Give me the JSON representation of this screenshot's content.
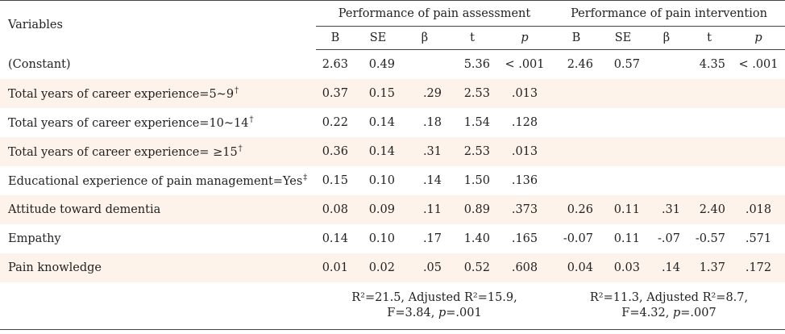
{
  "header": {
    "variables_label": "Variables",
    "group_assessment": "Performance of pain assessment",
    "group_intervention": "Performance of pain intervention",
    "cols_assessment": [
      "B",
      "SE",
      "β",
      "t",
      "p"
    ],
    "cols_intervention": [
      "B",
      "SE",
      "β",
      "t",
      "p"
    ]
  },
  "rows": [
    {
      "label": "(Constant)",
      "mark": "",
      "a": [
        "2.63",
        "0.49",
        "",
        "5.36",
        "< .001"
      ],
      "i": [
        "2.46",
        "0.57",
        "",
        "4.35",
        "< .001"
      ]
    },
    {
      "label": "Total years of career experience=5~9",
      "mark": "†",
      "a": [
        "0.37",
        "0.15",
        ".29",
        "2.53",
        ".013"
      ],
      "i": [
        "",
        "",
        "",
        "",
        ""
      ]
    },
    {
      "label": "Total years of career experience=10~14",
      "mark": "†",
      "a": [
        "0.22",
        "0.14",
        ".18",
        "1.54",
        ".128"
      ],
      "i": [
        "",
        "",
        "",
        "",
        ""
      ]
    },
    {
      "label": "Total years of career experience= ≥15",
      "mark": "†",
      "a": [
        "0.36",
        "0.14",
        ".31",
        "2.53",
        ".013"
      ],
      "i": [
        "",
        "",
        "",
        "",
        ""
      ]
    },
    {
      "label": "Educational experience of pain management=Yes",
      "mark": "‡",
      "a": [
        "0.15",
        "0.10",
        ".14",
        "1.50",
        ".136"
      ],
      "i": [
        "",
        "",
        "",
        "",
        ""
      ]
    },
    {
      "label": "Attitude toward dementia",
      "mark": "",
      "a": [
        "0.08",
        "0.09",
        ".11",
        "0.89",
        ".373"
      ],
      "i": [
        "0.26",
        "0.11",
        ".31",
        "2.40",
        ".018"
      ]
    },
    {
      "label": "Empathy",
      "mark": "",
      "a": [
        "0.14",
        "0.10",
        ".17",
        "1.40",
        ".165"
      ],
      "i": [
        "-0.07",
        "0.11",
        "-.07",
        "-0.57",
        ".571"
      ]
    },
    {
      "label": "Pain knowledge",
      "mark": "",
      "a": [
        "0.01",
        "0.02",
        ".05",
        "0.52",
        ".608"
      ],
      "i": [
        "0.04",
        "0.03",
        ".14",
        "1.37",
        ".172"
      ]
    }
  ],
  "summary": {
    "assessment": {
      "r2": "R²=21.5, Adjusted R²=15.9,",
      "f": "F=3.84, ",
      "p_label": "p",
      "p_val": "=.001"
    },
    "intervention": {
      "r2": "R²=11.3, Adjusted R²=8.7,",
      "f": "F=4.32, ",
      "p_label": "p",
      "p_val": "=.007"
    }
  },
  "colors": {
    "stripe": "#fdf3ea",
    "rule": "#444444",
    "text": "#222222"
  }
}
